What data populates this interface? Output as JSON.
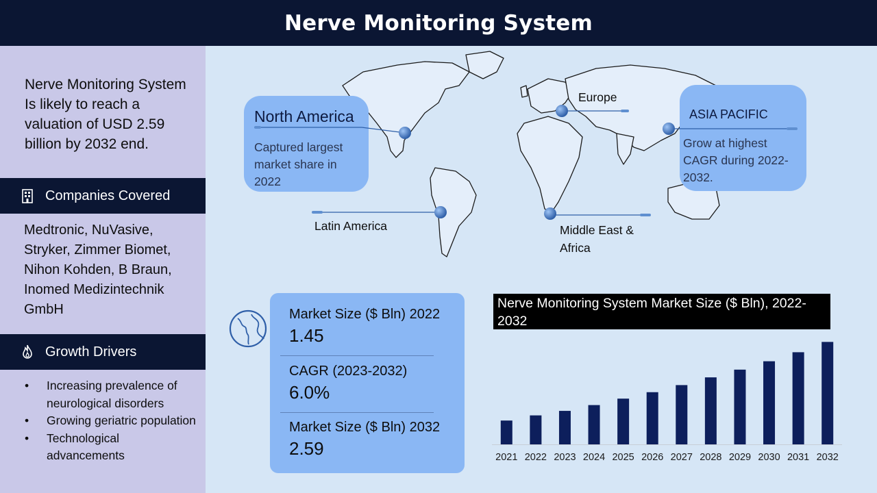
{
  "header": {
    "title": "Nerve Monitoring System"
  },
  "sidebar": {
    "summary": "Nerve Monitoring System Is likely to reach a valuation of USD 2.59 billion by 2032 end.",
    "companies_heading": "Companies Covered",
    "companies_text": "Medtronic, NuVasive, Stryker, Zimmer Biomet, Nihon Kohden, B Braun, Inomed Medizintechnik GmbH",
    "drivers_heading": "Growth Drivers",
    "drivers": [
      "Increasing prevalence of neurological disorders",
      "Growing geriatric population",
      "Technological advancements"
    ]
  },
  "regions": {
    "north_america": {
      "title": "North America",
      "desc": "Captured largest market share in 2022"
    },
    "europe": "Europe",
    "asia_pacific": {
      "title": "ASIA PACIFIC",
      "desc": "Grow at highest CAGR during 2022-2032."
    },
    "latin_america": "Latin America",
    "mea": "Middle East & Africa"
  },
  "metrics": [
    {
      "label": "Market Size ($ Bln) 2022",
      "value": "1.45"
    },
    {
      "label": "CAGR (2023-2032)",
      "value": "6.0%"
    },
    {
      "label": "Market Size ($ Bln) 2032",
      "value": "2.59"
    }
  ],
  "colors": {
    "header_bg": "#0b1633",
    "sidebar_bg": "#c9c8e8",
    "panel_bg": "#8ab7f4",
    "bar": "#0d1f5c",
    "page_bg": "#d6e6f6"
  },
  "chart_data": {
    "type": "bar",
    "title": "Nerve Monitoring System  Market Size ($ Bln), 2022-2032",
    "categories": [
      "2021",
      "2022",
      "2023",
      "2024",
      "2025",
      "2026",
      "2027",
      "2028",
      "2029",
      "2030",
      "2031",
      "2032"
    ],
    "values": [
      1.37,
      1.45,
      1.52,
      1.61,
      1.71,
      1.81,
      1.92,
      2.04,
      2.16,
      2.29,
      2.43,
      2.59
    ],
    "ylim": [
      1.0,
      2.7
    ],
    "grid": false,
    "legend": "none"
  }
}
